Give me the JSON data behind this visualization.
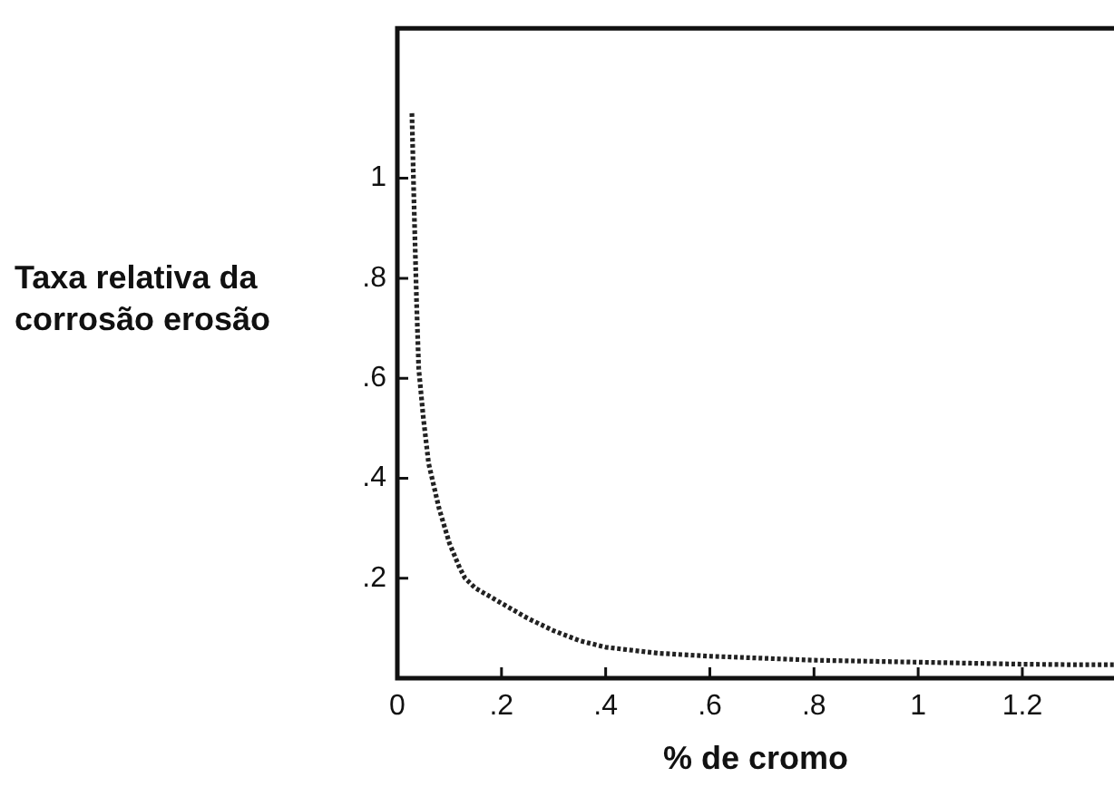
{
  "chart_data": {
    "type": "line",
    "xlabel": "% de cromo",
    "ylabel": "Taxa relativa da corrosão erosão",
    "xlim": [
      0,
      1.376
    ],
    "ylim": [
      0,
      1.3
    ],
    "xticks": [
      0,
      {
        "value": 0.2,
        "label": ".2"
      },
      {
        "value": 0.4,
        "label": ".4"
      },
      {
        "value": 0.6,
        "label": ".6"
      },
      {
        "value": 0.8,
        "label": ".8"
      },
      1,
      {
        "value": 1.2,
        "label": "1.2"
      }
    ],
    "yticks": [
      {
        "value": 0.2,
        "label": ".2"
      },
      {
        "value": 0.4,
        "label": ".4"
      },
      {
        "value": 0.6,
        "label": ".6"
      },
      {
        "value": 0.8,
        "label": ".8"
      },
      1
    ],
    "marker": "none",
    "line_style": "dotted",
    "series": [
      {
        "color": "#222222",
        "x": [
          0.028,
          0.032,
          0.037,
          0.041,
          0.05,
          0.06,
          0.08,
          0.1,
          0.12,
          0.13,
          0.15,
          0.2,
          0.25,
          0.3,
          0.35,
          0.4,
          0.5,
          0.6,
          0.7,
          0.8,
          0.9,
          1.0,
          1.1,
          1.2,
          1.3,
          1.376
        ],
        "values": [
          1.13,
          0.95,
          0.75,
          0.62,
          0.52,
          0.43,
          0.34,
          0.27,
          0.22,
          0.2,
          0.18,
          0.15,
          0.12,
          0.095,
          0.075,
          0.062,
          0.05,
          0.044,
          0.04,
          0.036,
          0.034,
          0.032,
          0.03,
          0.028,
          0.027,
          0.027
        ]
      }
    ]
  }
}
